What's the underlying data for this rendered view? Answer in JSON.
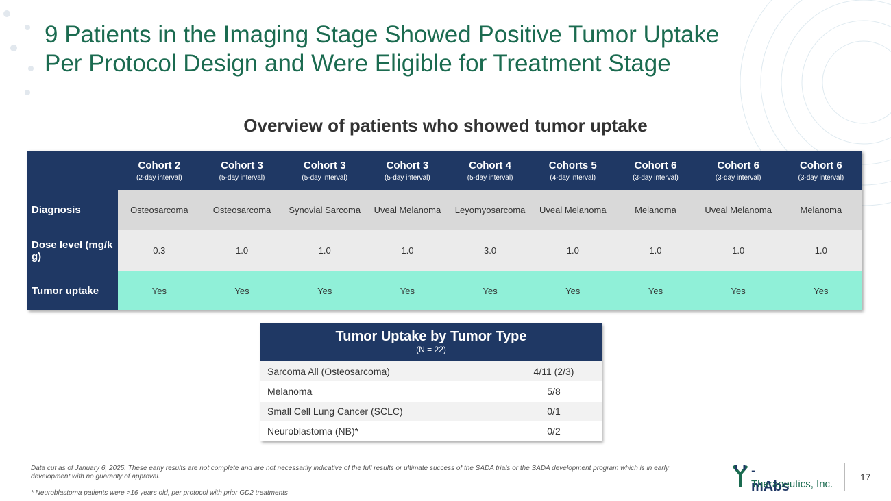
{
  "header": {
    "title_lines": [
      "9 Patients in the Imaging Stage Showed Positive Tumor Uptake",
      "Per Protocol Design and Were Eligible for Treatment Stage"
    ]
  },
  "subtitle": "Overview of patients who showed tumor uptake",
  "cohort_table": {
    "columns": [
      {
        "name": "Cohort 2",
        "note": "(2-day interval)"
      },
      {
        "name": "Cohort 3",
        "note": "(5-day interval)"
      },
      {
        "name": "Cohort 3",
        "note": "(5-day interval)"
      },
      {
        "name": "Cohort 3",
        "note": "(5-day interval)"
      },
      {
        "name": "Cohort 4",
        "note": "(5-day interval)"
      },
      {
        "name": "Cohorts 5",
        "note": "(4-day interval)"
      },
      {
        "name": "Cohort 6",
        "note": "(3-day interval)"
      },
      {
        "name": "Cohort 6",
        "note": "(3-day interval)"
      },
      {
        "name": "Cohort 6",
        "note": "(3-day interval)"
      }
    ],
    "rows": [
      {
        "label": "Diagnosis",
        "cells": [
          "Osteosarcoma",
          "Osteosarcoma",
          "Synovial Sarcoma",
          "Uveal Melanoma",
          "Leyomyosarcoma",
          "Uveal Melanoma",
          "Melanoma",
          "Uveal Melanoma",
          "Melanoma"
        ]
      },
      {
        "label": "Dose level (mg/kg)",
        "cells": [
          "0.3",
          "1.0",
          "1.0",
          "1.0",
          "3.0",
          "1.0",
          "1.0",
          "1.0",
          "1.0"
        ]
      },
      {
        "label": "Tumor uptake",
        "cells": [
          "Yes",
          "Yes",
          "Yes",
          "Yes",
          "Yes",
          "Yes",
          "Yes",
          "Yes",
          "Yes"
        ]
      }
    ]
  },
  "type_table": {
    "title": "Tumor Uptake by Tumor Type",
    "subtitle": "(N = 22)",
    "rows": [
      [
        "Sarcoma All (Osteosarcoma)",
        "4/11 (2/3)"
      ],
      [
        "Melanoma",
        "5/8"
      ],
      [
        "Small Cell Lung Cancer (SCLC)",
        "0/1"
      ],
      [
        "Neuroblastoma (NB)*",
        "0/2"
      ]
    ]
  },
  "footnotes": [
    "Data cut as of January 6, 2025. These early results are not complete and are not necessarily indicative of the full results or ultimate success of the SADA trials or the SADA development program which is in early development with no guaranty of approval.",
    "* Neuroblastoma patients were >16 years old, per protocol with prior GD2 treatments"
  ],
  "logo": {
    "brand": "-mAbs",
    "company": "Therapeutics, Inc."
  },
  "page_number": "17"
}
